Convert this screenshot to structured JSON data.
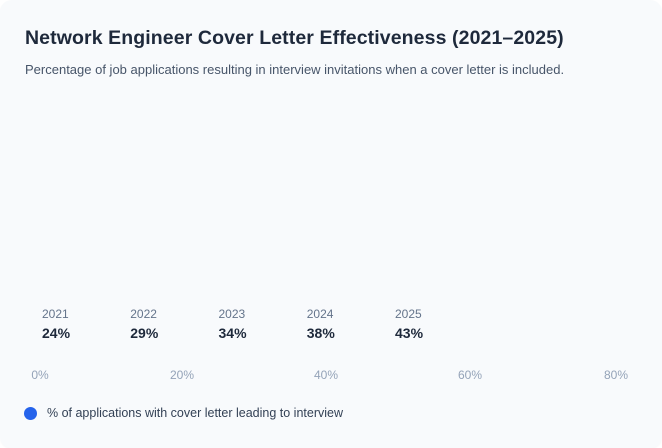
{
  "header": {
    "title": "Network Engineer Cover Letter Effectiveness (2021–2025)",
    "subtitle": "Percentage of job applications resulting in interview invitations when a cover letter is included."
  },
  "chart_data": {
    "type": "bar",
    "orientation": "horizontal",
    "title": "Network Engineer Cover Letter Effectiveness (2021–2025)",
    "categories": [
      "2021",
      "2022",
      "2023",
      "2024",
      "2025"
    ],
    "values": [
      24,
      29,
      34,
      38,
      43
    ],
    "value_labels": [
      "24%",
      "29%",
      "34%",
      "38%",
      "43%"
    ],
    "x_tick_labels": [
      "0%",
      "20%",
      "40%",
      "60%",
      "80%"
    ],
    "xlim": [
      0,
      86
    ],
    "xlabel": "",
    "ylabel": "",
    "grid": false,
    "legend_position": "bottom",
    "bars_visible": false
  },
  "legend": {
    "label": "% of applications with cover letter leading to interview"
  },
  "colors": {
    "accent": "#2563eb",
    "card_background": "#f8fafc",
    "title_text": "#1e293b",
    "subtitle_text": "#475569",
    "year_label_text": "#64748b",
    "value_label_text": "#1e293b",
    "axis_tick_text": "#94a3b8",
    "legend_text": "#334155"
  }
}
